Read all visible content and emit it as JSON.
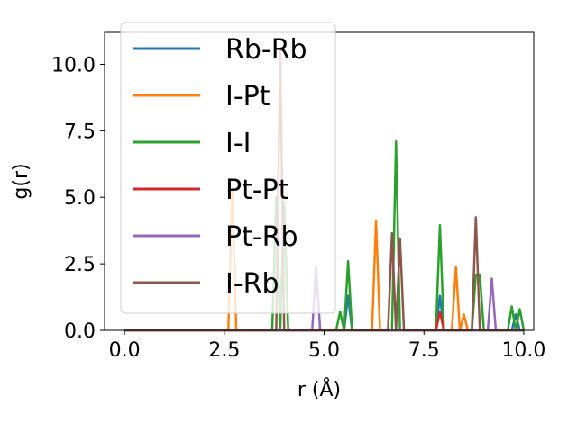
{
  "chart_data": {
    "type": "line",
    "title": "",
    "xlabel": "r (Å)",
    "ylabel": "g(r)",
    "xlim": [
      -0.5,
      10.25
    ],
    "ylim": [
      0,
      11.2
    ],
    "xticks": [
      0.0,
      2.5,
      5.0,
      7.5,
      10.0
    ],
    "xtick_labels": [
      "0.0",
      "2.5",
      "5.0",
      "7.5",
      "10.0"
    ],
    "yticks": [
      0.0,
      2.5,
      5.0,
      7.5,
      10.0
    ],
    "ytick_labels": [
      "0.0",
      "2.5",
      "5.0",
      "7.5",
      "10.0"
    ],
    "grid": false,
    "legend_position": "upper-left",
    "series": [
      {
        "name": "Rb-Rb",
        "color": "#1f77b4",
        "peaks": [
          [
            5.6,
            1.3
          ],
          [
            7.9,
            1.3
          ],
          [
            9.8,
            0.6
          ]
        ]
      },
      {
        "name": "I-Pt",
        "color": "#ff7f0e",
        "peaks": [
          [
            2.7,
            5.2
          ],
          [
            6.3,
            4.1
          ],
          [
            8.3,
            2.4
          ],
          [
            8.5,
            0.6
          ]
        ]
      },
      {
        "name": "I-I",
        "color": "#2ca02c",
        "peaks": [
          [
            3.8,
            5.0
          ],
          [
            4.0,
            4.8
          ],
          [
            5.4,
            0.7
          ],
          [
            5.6,
            2.6
          ],
          [
            6.8,
            7.1
          ],
          [
            7.9,
            3.95
          ],
          [
            8.8,
            2.1
          ],
          [
            8.9,
            2.1
          ],
          [
            9.7,
            0.9
          ],
          [
            9.9,
            0.8
          ]
        ]
      },
      {
        "name": "Pt-Pt",
        "color": "#d62728",
        "peaks": [
          [
            7.9,
            0.7
          ]
        ]
      },
      {
        "name": "Pt-Rb",
        "color": "#9467bd",
        "peaks": [
          [
            4.8,
            2.4
          ],
          [
            9.2,
            1.95
          ]
        ]
      },
      {
        "name": "I-Rb",
        "color": "#8c564b",
        "peaks": [
          [
            3.9,
            10.5
          ],
          [
            6.7,
            3.65
          ],
          [
            6.9,
            3.45
          ],
          [
            8.8,
            4.25
          ]
        ]
      }
    ]
  }
}
